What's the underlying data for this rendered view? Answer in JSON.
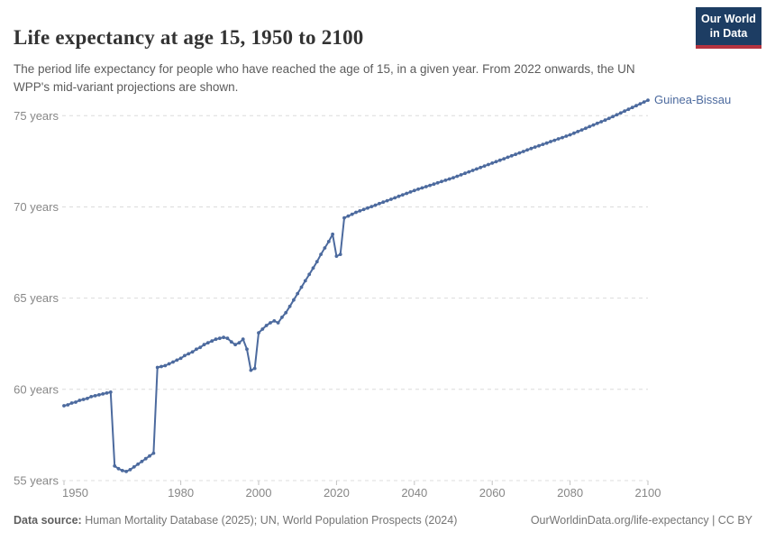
{
  "header": {
    "title": "Life expectancy at age 15, 1950 to 2100",
    "subtitle": "The period life expectancy for people who have reached the age of 15, in a given year. From 2022 onwards, the UN WPP's mid-variant projections are shown.",
    "logo": {
      "line1": "Our World",
      "line2": "in Data",
      "bg_color": "#1d3d63",
      "accent_color": "#b5333f"
    }
  },
  "chart_data": {
    "type": "line",
    "title": "Life expectancy at age 15, 1950 to 2100",
    "xlabel": "",
    "ylabel": "",
    "xlim": [
      1950,
      2100
    ],
    "ylim": [
      55,
      76.2
    ],
    "grid": "horizontal-dashed",
    "legend_position": "end-of-line-label",
    "x_ticks": [
      1950,
      1980,
      2000,
      2020,
      2040,
      2060,
      2080,
      2100
    ],
    "y_ticks": [
      55,
      60,
      65,
      70,
      75
    ],
    "y_tick_suffix": " years",
    "projection_note": "Values from 2022 onwards are UN WPP mid-variant projections",
    "series": [
      {
        "name": "Guinea-Bissau",
        "color": "#4c6a9e",
        "x": [
          1950,
          1951,
          1952,
          1953,
          1954,
          1955,
          1956,
          1957,
          1958,
          1959,
          1960,
          1961,
          1962,
          1963,
          1964,
          1965,
          1966,
          1967,
          1968,
          1969,
          1970,
          1971,
          1972,
          1973,
          1974,
          1975,
          1976,
          1977,
          1978,
          1979,
          1980,
          1981,
          1982,
          1983,
          1984,
          1985,
          1986,
          1987,
          1988,
          1989,
          1990,
          1991,
          1992,
          1993,
          1994,
          1995,
          1996,
          1997,
          1998,
          1999,
          2000,
          2001,
          2002,
          2003,
          2004,
          2005,
          2006,
          2007,
          2008,
          2009,
          2010,
          2011,
          2012,
          2013,
          2014,
          2015,
          2016,
          2017,
          2018,
          2019,
          2020,
          2021,
          2022,
          2023,
          2024,
          2025,
          2026,
          2027,
          2028,
          2029,
          2030,
          2031,
          2032,
          2033,
          2034,
          2035,
          2036,
          2037,
          2038,
          2039,
          2040,
          2041,
          2042,
          2043,
          2044,
          2045,
          2046,
          2047,
          2048,
          2049,
          2050,
          2051,
          2052,
          2053,
          2054,
          2055,
          2056,
          2057,
          2058,
          2059,
          2060,
          2061,
          2062,
          2063,
          2064,
          2065,
          2066,
          2067,
          2068,
          2069,
          2070,
          2071,
          2072,
          2073,
          2074,
          2075,
          2076,
          2077,
          2078,
          2079,
          2080,
          2081,
          2082,
          2083,
          2084,
          2085,
          2086,
          2087,
          2088,
          2089,
          2090,
          2091,
          2092,
          2093,
          2094,
          2095,
          2096,
          2097,
          2098,
          2099,
          2100
        ],
        "values": [
          59.1,
          59.15,
          59.25,
          59.3,
          59.4,
          59.45,
          59.5,
          59.6,
          59.65,
          59.7,
          59.75,
          59.8,
          59.85,
          55.8,
          55.65,
          55.55,
          55.5,
          55.6,
          55.75,
          55.9,
          56.05,
          56.2,
          56.35,
          56.5,
          61.2,
          61.25,
          61.3,
          61.4,
          61.5,
          61.6,
          61.7,
          61.85,
          61.95,
          62.05,
          62.2,
          62.3,
          62.45,
          62.55,
          62.65,
          62.75,
          62.8,
          62.85,
          62.8,
          62.6,
          62.45,
          62.55,
          62.75,
          62.2,
          61.05,
          61.15,
          63.1,
          63.3,
          63.5,
          63.65,
          63.75,
          63.65,
          63.95,
          64.2,
          64.55,
          64.9,
          65.25,
          65.6,
          65.95,
          66.3,
          66.65,
          67.0,
          67.4,
          67.75,
          68.1,
          68.5,
          67.3,
          67.4,
          69.4,
          69.5,
          69.6,
          69.7,
          69.78,
          69.86,
          69.94,
          70.02,
          70.1,
          70.18,
          70.26,
          70.34,
          70.42,
          70.5,
          70.58,
          70.66,
          70.74,
          70.82,
          70.9,
          70.97,
          71.04,
          71.11,
          71.18,
          71.25,
          71.32,
          71.39,
          71.46,
          71.53,
          71.6,
          71.68,
          71.76,
          71.84,
          71.92,
          72.0,
          72.08,
          72.16,
          72.24,
          72.32,
          72.4,
          72.48,
          72.56,
          72.64,
          72.72,
          72.8,
          72.88,
          72.96,
          73.04,
          73.12,
          73.2,
          73.28,
          73.35,
          73.43,
          73.5,
          73.58,
          73.65,
          73.73,
          73.8,
          73.88,
          73.95,
          74.04,
          74.13,
          74.22,
          74.31,
          74.4,
          74.49,
          74.58,
          74.67,
          74.76,
          74.85,
          74.95,
          75.05,
          75.15,
          75.25,
          75.35,
          75.45,
          75.55,
          75.65,
          75.75,
          75.85
        ]
      }
    ]
  },
  "footer": {
    "datasource_label": "Data source:",
    "datasource_text": " Human Mortality Database (2025); UN, World Population Prospects (2024)",
    "license_text": "OurWorldinData.org/life-expectancy | CC BY"
  },
  "colors": {
    "line": "#4c6a9e",
    "gridline": "#dcdcdc",
    "tick_text": "#878787",
    "title_text": "#333333",
    "subtitle_text": "#5b5b5b",
    "footer_text": "#757575",
    "logo_navy": "#1d3d63",
    "logo_red": "#b5333f"
  }
}
